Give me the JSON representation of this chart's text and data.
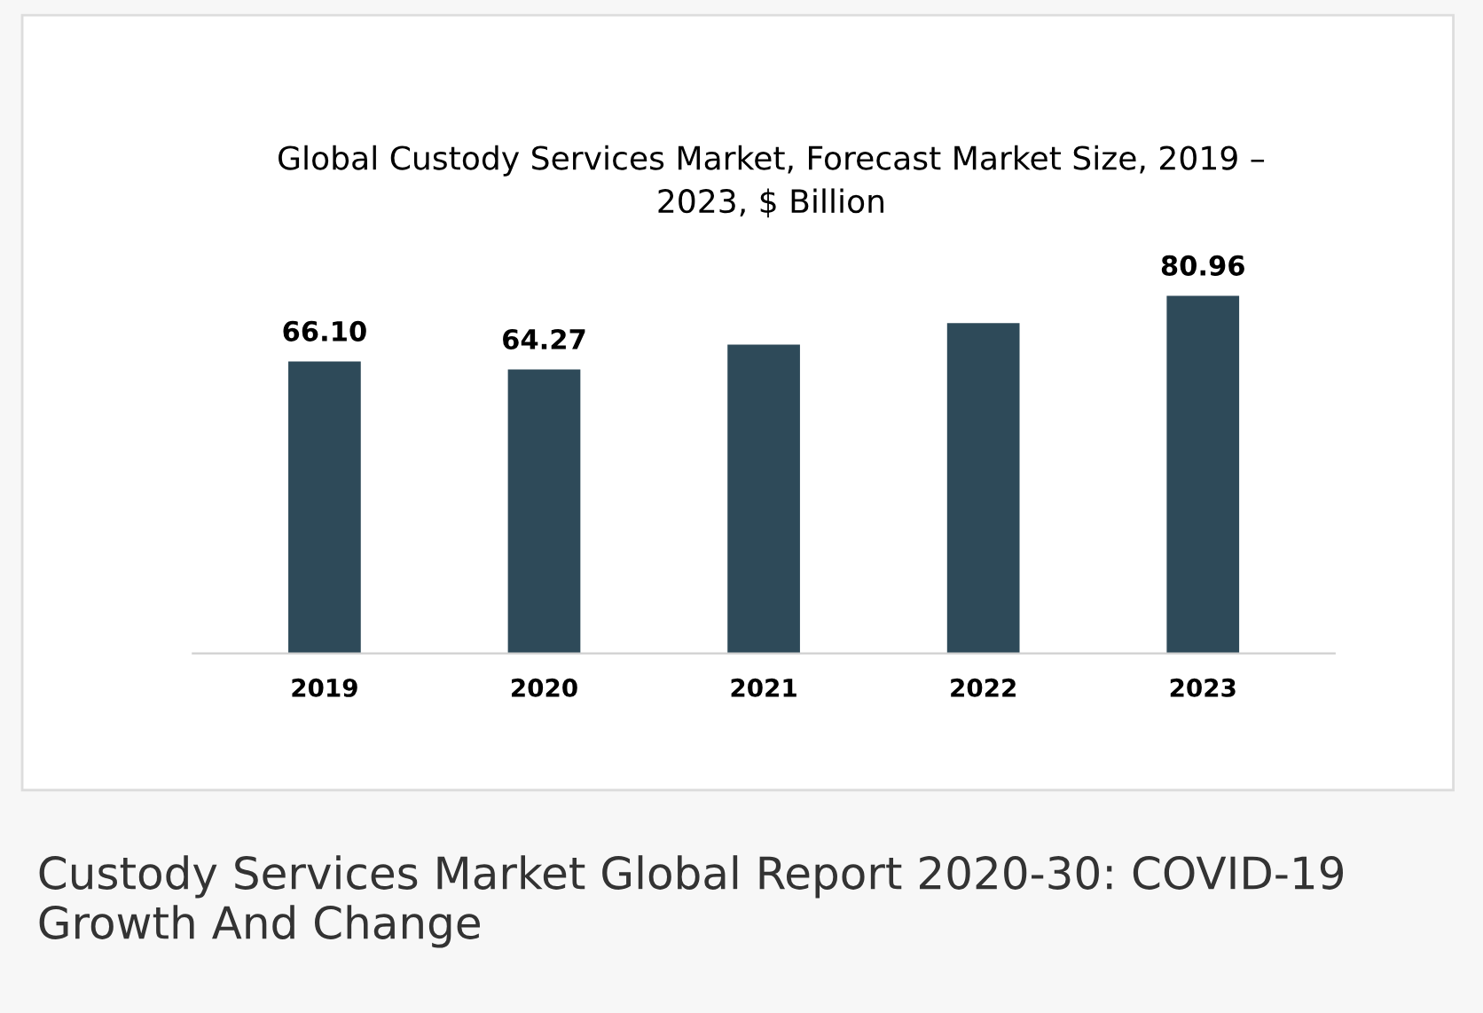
{
  "chart_data": {
    "type": "bar",
    "title": "Global Custody Services Market, Forecast Market Size, 2019 –\n2023, $ Billion",
    "categories": [
      "2019",
      "2020",
      "2021",
      "2022",
      "2023"
    ],
    "values": [
      66.1,
      64.27,
      69.9,
      74.8,
      80.96
    ],
    "value_labels": [
      "66.10",
      "64.27",
      null,
      null,
      "80.96"
    ],
    "color": "#2e4a59",
    "annotations": [
      "Custody Services Market Global Report 2020-30: COVID-19 Growth And Change"
    ]
  }
}
